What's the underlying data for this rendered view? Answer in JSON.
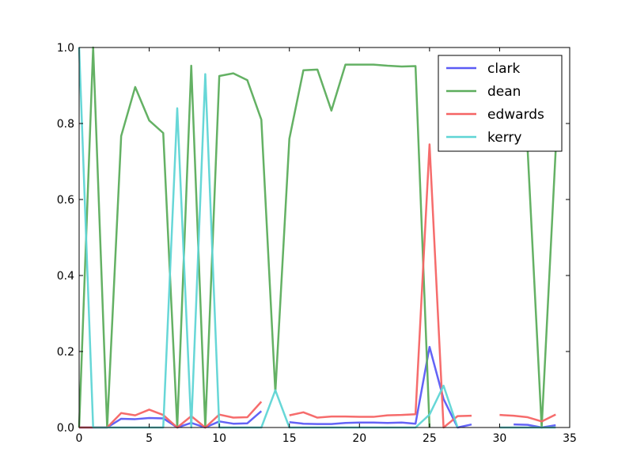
{
  "chart_data": {
    "type": "line",
    "title": "",
    "xlabel": "",
    "ylabel": "",
    "xlim": [
      0,
      35
    ],
    "ylim": [
      0,
      1
    ],
    "xticks": [
      0,
      5,
      10,
      15,
      20,
      25,
      30,
      35
    ],
    "yticks": [
      0.0,
      0.2,
      0.4,
      0.6,
      0.8,
      1.0
    ],
    "xtick_labels": [
      "0",
      "5",
      "10",
      "15",
      "20",
      "25",
      "30",
      "35"
    ],
    "ytick_labels": [
      "0.0",
      "0.2",
      "0.4",
      "0.6",
      "0.8",
      "1.0"
    ],
    "grid": false,
    "legend_position": "top-right",
    "x": [
      0,
      1,
      2,
      3,
      4,
      5,
      6,
      7,
      8,
      9,
      10,
      11,
      12,
      13,
      14,
      15,
      16,
      17,
      18,
      19,
      20,
      21,
      22,
      23,
      24,
      25,
      26,
      27,
      28,
      29,
      30,
      31,
      32,
      33,
      34
    ],
    "series": [
      {
        "name": "clark",
        "color": "#5b5bf5",
        "values": [
          0.0,
          0.0,
          0.0,
          0.023,
          0.022,
          0.025,
          0.024,
          0.0,
          0.012,
          0.0,
          0.016,
          0.01,
          0.011,
          0.043,
          null,
          0.014,
          0.01,
          0.009,
          0.009,
          0.012,
          0.013,
          0.013,
          0.012,
          0.013,
          0.01,
          0.212,
          0.075,
          0.0,
          0.008,
          null,
          null,
          0.008,
          0.007,
          0.0,
          0.006
        ]
      },
      {
        "name": "dean",
        "color": "#5cad5c",
        "values": [
          0.0,
          1.0,
          0.0,
          0.767,
          0.896,
          0.808,
          0.775,
          0.0,
          0.952,
          0.0,
          0.925,
          0.932,
          0.914,
          0.81,
          0.093,
          0.76,
          0.94,
          0.942,
          0.834,
          0.955,
          0.955,
          0.955,
          0.952,
          0.95,
          0.951,
          0.0,
          null,
          null,
          null,
          null,
          null,
          null,
          0.73,
          0.0,
          0.73
        ]
      },
      {
        "name": "edwards",
        "color": "#f56464",
        "values": [
          0.0,
          0.0,
          0.0,
          0.038,
          0.032,
          0.047,
          0.033,
          0.0,
          0.03,
          0.0,
          0.034,
          0.026,
          0.027,
          0.068,
          null,
          0.032,
          0.04,
          0.026,
          0.029,
          0.029,
          0.028,
          0.028,
          0.032,
          0.033,
          0.035,
          0.745,
          0.0,
          0.03,
          0.031,
          null,
          0.033,
          0.031,
          0.027,
          0.016,
          0.034
        ]
      },
      {
        "name": "kerry",
        "color": "#5fd5d5",
        "values": [
          1.0,
          0.0,
          0.0,
          0.0,
          0.0,
          0.0,
          0.0,
          0.84,
          0.0,
          0.93,
          0.0,
          0.0,
          0.0,
          0.0,
          0.098,
          0.0,
          0.0,
          0.0,
          0.0,
          0.0,
          0.0,
          0.0,
          0.0,
          0.0,
          0.0,
          0.034,
          0.11,
          0.0,
          null,
          null,
          0.0,
          0.0,
          0.0,
          0.0,
          0.0
        ]
      }
    ]
  }
}
